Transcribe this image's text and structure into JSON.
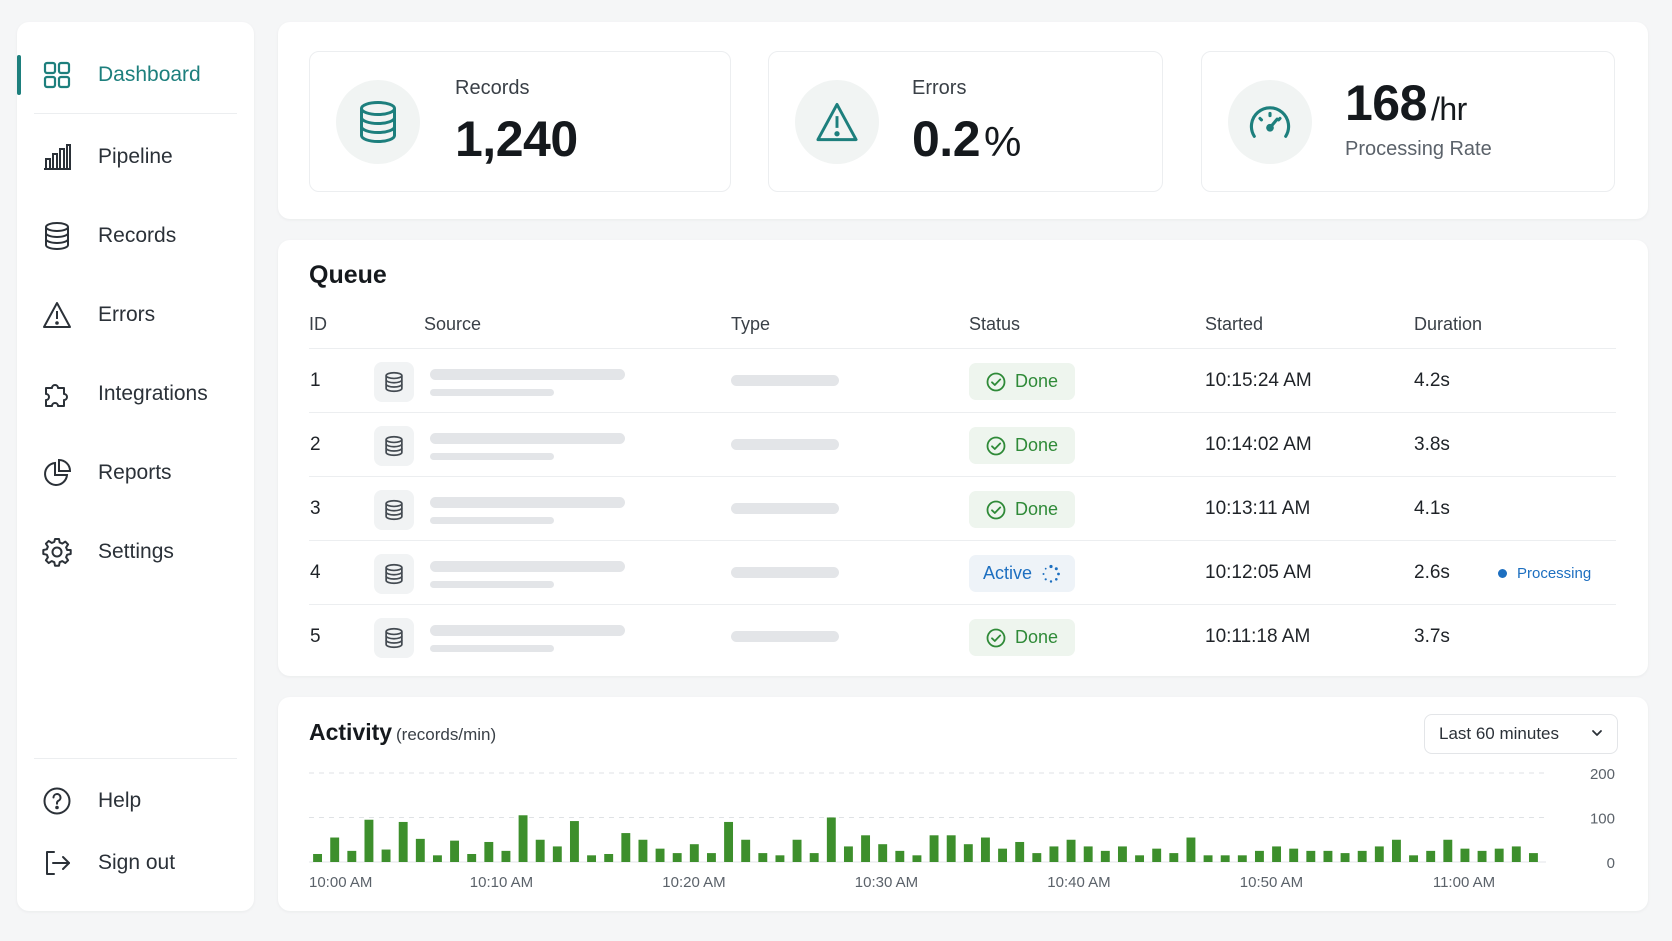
{
  "sidebar": {
    "items": [
      {
        "label": "Dashboard",
        "icon": "grid-icon",
        "active": true
      },
      {
        "label": "Pipeline",
        "icon": "bar-chart-icon"
      },
      {
        "label": "Records",
        "icon": "database-icon"
      },
      {
        "label": "Errors",
        "icon": "warning-icon"
      },
      {
        "label": "Integrations",
        "icon": "puzzle-icon"
      },
      {
        "label": "Reports",
        "icon": "pie-chart-icon"
      },
      {
        "label": "Settings",
        "icon": "gear-icon"
      }
    ],
    "footer": [
      {
        "label": "Help",
        "icon": "help-circle-icon"
      },
      {
        "label": "Sign out",
        "icon": "sign-out-icon"
      }
    ]
  },
  "stats": {
    "records": {
      "label": "Records",
      "value": "1,240",
      "icon": "database-icon"
    },
    "errors": {
      "label": "Errors",
      "value": "0.2",
      "unit": "%",
      "icon": "warning-icon"
    },
    "rate": {
      "label": "Processing Rate",
      "value": "168",
      "unit": "/hr",
      "icon": "speedometer-icon"
    }
  },
  "queue": {
    "title": "Queue",
    "columns": [
      "ID",
      "Source",
      "Type",
      "Status",
      "Started",
      "Duration"
    ],
    "rows": [
      {
        "id": "1",
        "status": "Done",
        "started": "10:15:24 AM",
        "duration": "4.2s"
      },
      {
        "id": "2",
        "status": "Done",
        "started": "10:14:02 AM",
        "duration": "3.8s"
      },
      {
        "id": "3",
        "status": "Done",
        "started": "10:13:11 AM",
        "duration": "4.1s"
      },
      {
        "id": "4",
        "status": "Active",
        "started": "10:12:05 AM",
        "duration": "2.6s",
        "note": "Processing"
      },
      {
        "id": "5",
        "status": "Done",
        "started": "10:11:18 AM",
        "duration": "3.7s"
      }
    ]
  },
  "activity": {
    "title": "Activity",
    "subtitle": "(records/min)",
    "range": "Last 60 minutes"
  },
  "colors": {
    "accent": "#1d7f7d",
    "done": "#2f8a38",
    "active": "#1d6fc0",
    "bar": "#3d8f2c"
  },
  "chart_data": {
    "type": "bar",
    "x_tick_labels": [
      "10:00 AM",
      "10:10 AM",
      "10:20 AM",
      "10:30 AM",
      "10:40 AM",
      "10:50 AM",
      "11:00 AM"
    ],
    "y_tick_labels": [
      "200",
      "100",
      "0"
    ],
    "ylim": [
      0,
      200
    ],
    "grid": true,
    "series": [
      {
        "values": [
          18,
          55,
          25,
          95,
          28,
          90,
          52,
          15,
          48,
          18,
          45,
          25,
          105,
          50,
          35,
          92,
          15,
          18,
          65,
          50,
          30,
          20,
          40,
          20,
          90,
          50,
          20,
          15,
          50,
          20,
          100,
          35,
          60,
          40,
          25,
          15,
          60,
          60,
          40,
          55,
          30,
          45,
          20,
          35,
          50,
          35,
          25,
          35,
          15,
          30,
          20,
          55,
          15,
          15,
          15,
          25,
          35,
          30,
          25,
          25,
          20,
          25,
          35,
          50,
          15,
          25,
          50,
          30,
          25,
          30,
          35,
          20
        ]
      }
    ]
  }
}
